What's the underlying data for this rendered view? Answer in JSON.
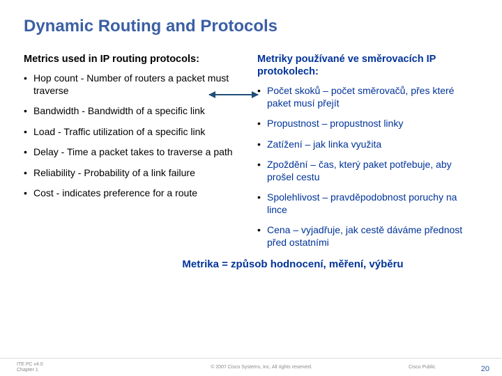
{
  "title": "Dynamic Routing and Protocols",
  "left": {
    "heading": "Metrics used in IP routing protocols:",
    "items": [
      "Hop count - Number of routers a packet must traverse",
      "Bandwidth - Bandwidth of a specific link",
      "Load - Traffic utilization of a specific link",
      "Delay - Time a packet takes to traverse a path",
      "Reliability - Probability of a link failure",
      "Cost - indicates preference for a route"
    ]
  },
  "right": {
    "heading": "Metriky používané ve směrovacích IP protokolech:",
    "items": [
      "Počet skoků – počet směrovačů, přes které paket musí přejít",
      "Propustnost – propustnost linky",
      "Zatížení – jak linka využita",
      "Zpoždění – čas, který paket potřebuje, aby prošel cestu",
      "Spolehlivost – pravděpodobnost poruchy na lince",
      "Cena – vyjadřuje, jak cestě dáváme přednost před ostatními"
    ]
  },
  "summary": "Metrika = způsob hodnocení, měření, výběru",
  "footer": {
    "left1": "ITE PC v4.0",
    "left2": "Chapter 1",
    "mid": "© 2007 Cisco Systems, Inc. All rights reserved.",
    "right": "Cisco Public",
    "page": "20"
  },
  "colors": {
    "title": "#3b5fa4",
    "accent": "#003399",
    "arrow": "#1f4e79",
    "footer_text": "#8a8a8a"
  }
}
